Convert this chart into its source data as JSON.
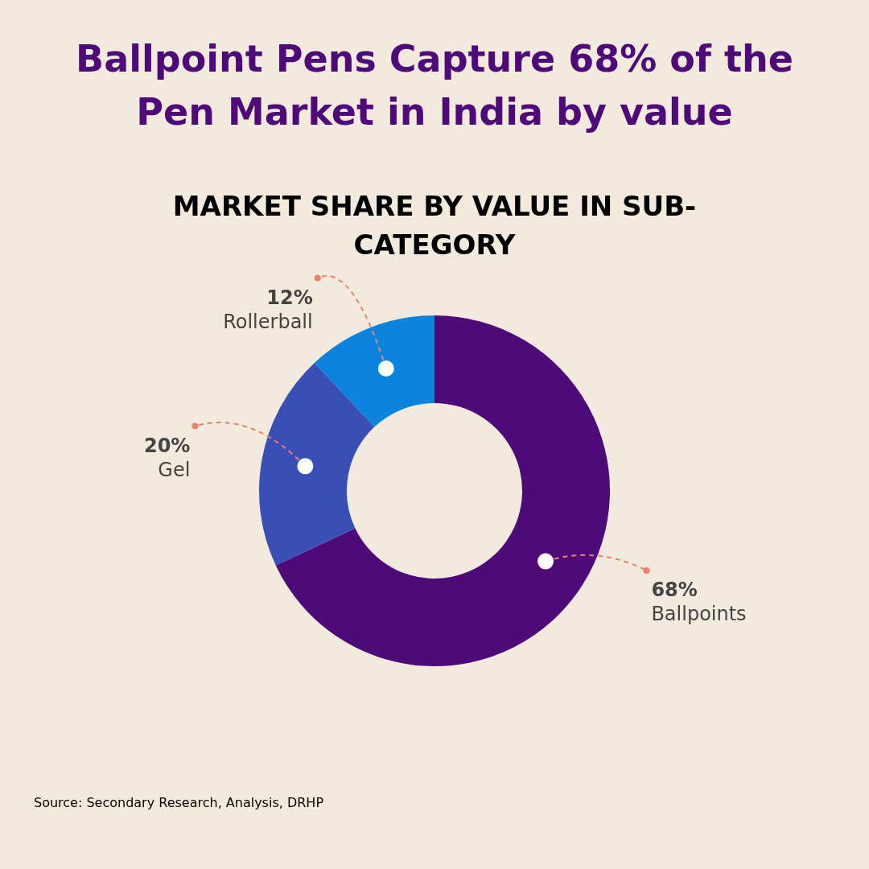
{
  "chart_data": {
    "type": "donut",
    "title": "Ballpoint Pens Capture 68% of the Pen Market in India by value",
    "subtitle": "MARKET SHARE BY VALUE IN SUB-CATEGORY",
    "categories": [
      "Ballpoints",
      "Gel",
      "Rollerball"
    ],
    "values": [
      68,
      20,
      12
    ],
    "value_labels": [
      "68%",
      "20%",
      "12%"
    ],
    "colors": [
      "#4f0a7a",
      "#3a4fb5",
      "#0a84dd"
    ],
    "legend": false,
    "annotations": [
      "Source: Secondary Research, Analysis, DRHP"
    ]
  }
}
